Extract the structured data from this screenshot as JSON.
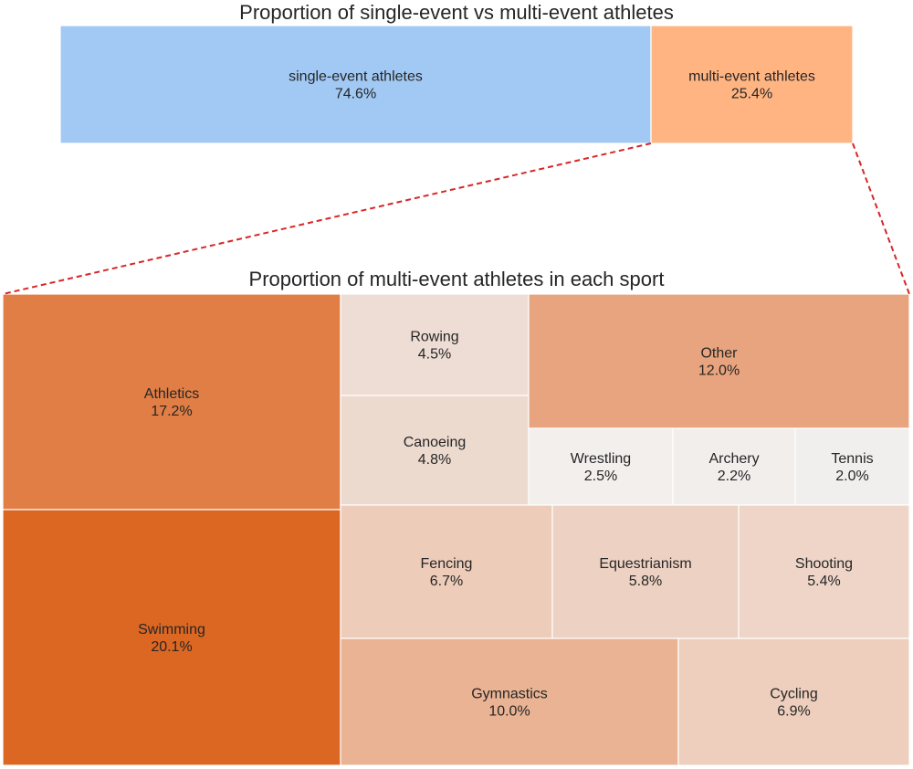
{
  "chart_data": [
    {
      "type": "treemap",
      "title": "Proportion of single-event vs multi-event athletes",
      "items": [
        {
          "label": "single-event athletes",
          "value": 74.6,
          "value_label": "74.6%",
          "color": "#a1c9f4"
        },
        {
          "label": "multi-event athletes",
          "value": 25.4,
          "value_label": "25.4%",
          "color": "#ffb482"
        }
      ]
    },
    {
      "type": "treemap",
      "title": "Proportion of multi-event athletes in each sport",
      "items": [
        {
          "label": "Athletics",
          "value": 17.2,
          "value_label": "17.2%",
          "color": "#e07e45"
        },
        {
          "label": "Swimming",
          "value": 20.1,
          "value_label": "20.1%",
          "color": "#dc6723"
        },
        {
          "label": "Rowing",
          "value": 4.5,
          "value_label": "4.5%",
          "color": "#eeddd4"
        },
        {
          "label": "Canoeing",
          "value": 4.8,
          "value_label": "4.8%",
          "color": "#eddacf"
        },
        {
          "label": "Other",
          "value": 12.0,
          "value_label": "12.0%",
          "color": "#e8a47e"
        },
        {
          "label": "Wrestling",
          "value": 2.5,
          "value_label": "2.5%",
          "color": "#f2efed"
        },
        {
          "label": "Archery",
          "value": 2.2,
          "value_label": "2.2%",
          "color": "#f1eeec"
        },
        {
          "label": "Tennis",
          "value": 2.0,
          "value_label": "2.0%",
          "color": "#f1efee"
        },
        {
          "label": "Fencing",
          "value": 6.7,
          "value_label": "6.7%",
          "color": "#edccb9"
        },
        {
          "label": "Equestrianism",
          "value": 5.8,
          "value_label": "5.8%",
          "color": "#edd1c2"
        },
        {
          "label": "Shooting",
          "value": 5.4,
          "value_label": "5.4%",
          "color": "#eed5c8"
        },
        {
          "label": "Gymnastics",
          "value": 10.0,
          "value_label": "10.0%",
          "color": "#e9b394"
        },
        {
          "label": "Cycling",
          "value": 6.9,
          "value_label": "6.9%",
          "color": "#eecfbd"
        }
      ]
    }
  ],
  "connector_color": "#d62728"
}
